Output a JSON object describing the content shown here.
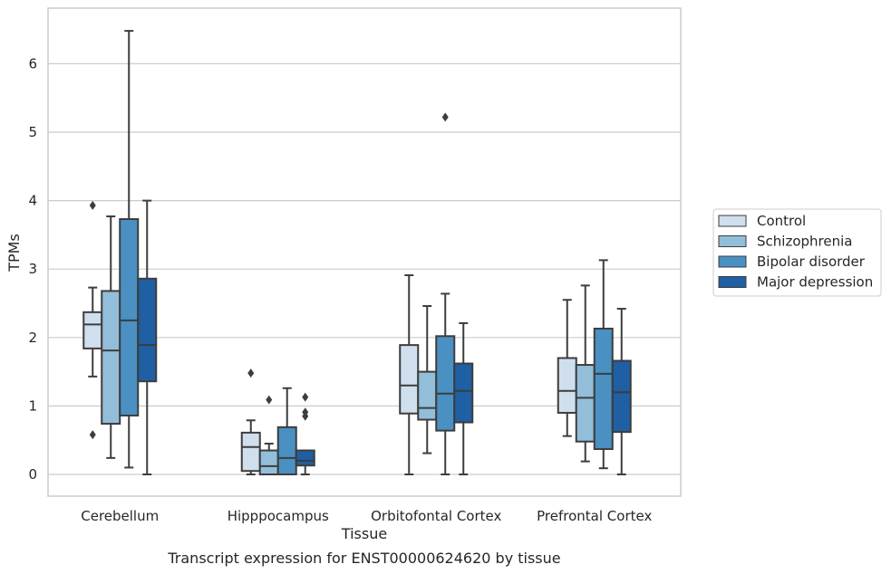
{
  "caption": "Transcript expression for ENST00000624620 by tissue",
  "chart_data": {
    "type": "box",
    "title": "",
    "xlabel": "Tissue",
    "ylabel": "TPMs",
    "ylim": [
      -0.32,
      6.8
    ],
    "yticks": [
      0,
      1,
      2,
      3,
      4,
      5,
      6
    ],
    "grid": "horizontal",
    "legend_position": "right",
    "categories": [
      "Cerebellum",
      "Hipppocampus",
      "Orbitofontal Cortex",
      "Prefrontal Cortex"
    ],
    "series": [
      {
        "name": "Control",
        "color": "#cfdfee",
        "boxes": [
          {
            "whislo": 1.43,
            "q1": 1.84,
            "med": 2.19,
            "q3": 2.37,
            "whishi": 2.73,
            "fliers": [
              3.93,
              0.58
            ]
          },
          {
            "whislo": 0.0,
            "q1": 0.05,
            "med": 0.4,
            "q3": 0.61,
            "whishi": 0.79,
            "fliers": [
              1.48
            ]
          },
          {
            "whislo": 0.0,
            "q1": 0.89,
            "med": 1.3,
            "q3": 1.89,
            "whishi": 2.91,
            "fliers": []
          },
          {
            "whislo": 0.56,
            "q1": 0.9,
            "med": 1.22,
            "q3": 1.7,
            "whishi": 2.55,
            "fliers": []
          }
        ]
      },
      {
        "name": "Schizophrenia",
        "color": "#93bed9",
        "boxes": [
          {
            "whislo": 0.24,
            "q1": 0.74,
            "med": 1.81,
            "q3": 2.68,
            "whishi": 3.77,
            "fliers": []
          },
          {
            "whislo": 0.0,
            "q1": 0.0,
            "med": 0.12,
            "q3": 0.35,
            "whishi": 0.45,
            "fliers": [
              1.09
            ]
          },
          {
            "whislo": 0.31,
            "q1": 0.8,
            "med": 0.97,
            "q3": 1.5,
            "whishi": 2.46,
            "fliers": []
          },
          {
            "whislo": 0.19,
            "q1": 0.48,
            "med": 1.12,
            "q3": 1.6,
            "whishi": 2.76,
            "fliers": []
          }
        ]
      },
      {
        "name": "Bipolar disorder",
        "color": "#4a90c2",
        "boxes": [
          {
            "whislo": 0.1,
            "q1": 0.86,
            "med": 2.25,
            "q3": 3.73,
            "whishi": 6.48,
            "fliers": []
          },
          {
            "whislo": 0.0,
            "q1": 0.0,
            "med": 0.24,
            "q3": 0.69,
            "whishi": 1.26,
            "fliers": []
          },
          {
            "whislo": 0.0,
            "q1": 0.64,
            "med": 1.18,
            "q3": 2.02,
            "whishi": 2.64,
            "fliers": [
              5.22
            ]
          },
          {
            "whislo": 0.09,
            "q1": 0.37,
            "med": 1.47,
            "q3": 2.13,
            "whishi": 3.13,
            "fliers": []
          }
        ]
      },
      {
        "name": "Major depression",
        "color": "#1f5fa3",
        "boxes": [
          {
            "whislo": 0.0,
            "q1": 1.36,
            "med": 1.89,
            "q3": 2.86,
            "whishi": 4.0,
            "fliers": []
          },
          {
            "whislo": 0.0,
            "q1": 0.13,
            "med": 0.2,
            "q3": 0.35,
            "whishi": 0.35,
            "fliers": [
              1.13,
              0.91,
              0.85
            ]
          },
          {
            "whislo": 0.0,
            "q1": 0.76,
            "med": 1.22,
            "q3": 1.62,
            "whishi": 2.21,
            "fliers": []
          },
          {
            "whislo": 0.0,
            "q1": 0.62,
            "med": 1.2,
            "q3": 1.66,
            "whishi": 2.42,
            "fliers": []
          }
        ]
      }
    ]
  }
}
